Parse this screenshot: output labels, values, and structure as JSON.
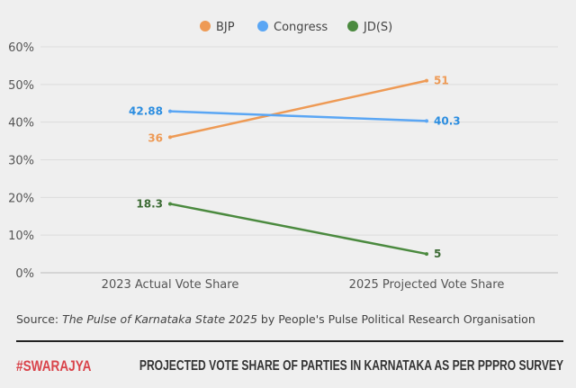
{
  "chart_data": {
    "type": "line",
    "categories": [
      "2023 Actual Vote Share",
      "2025 Projected Vote Share"
    ],
    "series": [
      {
        "name": "BJP",
        "values": [
          36,
          51
        ],
        "labels": [
          "36",
          "51"
        ],
        "color": "#ee9a55",
        "label_color": "#ee9a55"
      },
      {
        "name": "Congress",
        "values": [
          42.88,
          40.3
        ],
        "labels": [
          "42.88",
          "40.3"
        ],
        "color": "#5aa6f4",
        "label_color": "#2b8de0"
      },
      {
        "name": "JD(S)",
        "values": [
          18.3,
          5
        ],
        "labels": [
          "18.3",
          "5"
        ],
        "color": "#4b8a3f",
        "label_color": "#3d6b35"
      }
    ],
    "yticks": [
      "0%",
      "10%",
      "20%",
      "30%",
      "40%",
      "50%",
      "60%"
    ],
    "ylim": [
      0,
      60
    ],
    "grid": true,
    "legend": "top-center"
  },
  "source": {
    "prefix": "Source: ",
    "italic": "The Pulse of Karnataka State 2025",
    "suffix": " by People's Pulse Political Research Organisation"
  },
  "footer": {
    "brand": "#SWARAJYA",
    "title": "PROJECTED VOTE SHARE OF PARTIES IN KARNATAKA AS PER PPPRO SURVEY"
  }
}
